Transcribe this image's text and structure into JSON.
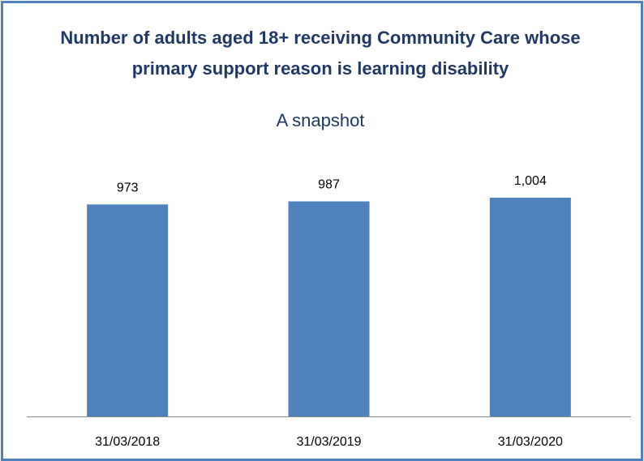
{
  "chart_data": {
    "type": "bar",
    "title": "Number of adults aged 18+ receiving Community Care whose primary support reason is learning disability",
    "subtitle": "A snapshot",
    "categories": [
      "31/03/2018",
      "31/03/2019",
      "31/03/2020"
    ],
    "values": [
      973,
      987,
      1004
    ],
    "data_labels": [
      "973",
      "987",
      "1,004"
    ],
    "xlabel": "",
    "ylabel": "",
    "ylim": [
      0,
      1140
    ],
    "grid": false,
    "legend": "none",
    "colors": {
      "bar": "#4f81bd",
      "frame": "#4f81bd",
      "title": "#1f3864"
    }
  }
}
